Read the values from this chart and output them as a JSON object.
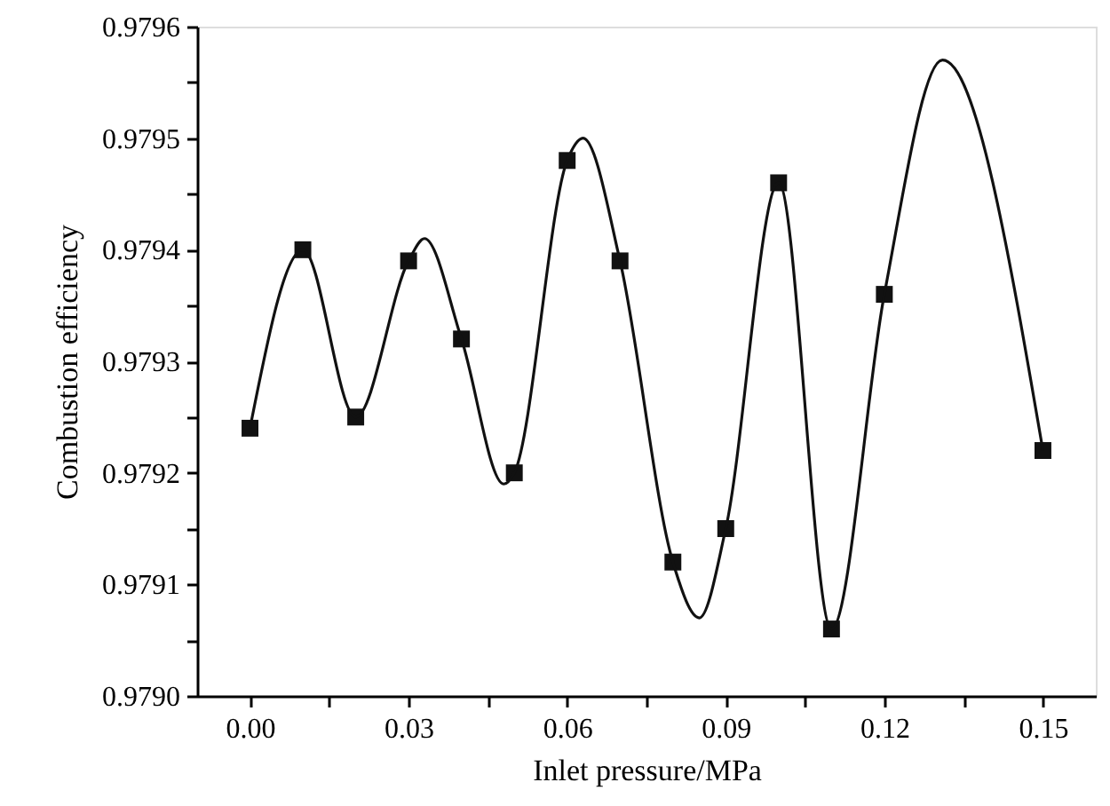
{
  "chart_data": {
    "type": "scatter",
    "xlabel": "Inlet pressure/MPa",
    "ylabel": "Combustion efficiency",
    "x": [
      0.0,
      0.01,
      0.02,
      0.03,
      0.04,
      0.05,
      0.06,
      0.07,
      0.08,
      0.09,
      0.1,
      0.11,
      0.12,
      0.15
    ],
    "series": [
      {
        "type": "scatter",
        "color": "#111111",
        "marker": "square",
        "values": [
          0.97924,
          0.9794,
          0.97925,
          0.97939,
          0.97932,
          0.9792,
          0.97948,
          0.97939,
          0.97912,
          0.97915,
          0.97946,
          0.97906,
          0.97936,
          0.97922
        ]
      },
      {
        "type": "line",
        "color": "#111111",
        "marker": "none",
        "line_style": "solid",
        "x": [
          0.0,
          0.01,
          0.02,
          0.03,
          0.033,
          0.04,
          0.048,
          0.05,
          0.06,
          0.063,
          0.07,
          0.08,
          0.085,
          0.09,
          0.1,
          0.11,
          0.12,
          0.131,
          0.15
        ],
        "values": [
          0.97924,
          0.9794,
          0.97925,
          0.97939,
          0.97941,
          0.97932,
          0.97919,
          0.9792,
          0.97948,
          0.9795,
          0.97939,
          0.97912,
          0.97907,
          0.97915,
          0.97946,
          0.97906,
          0.97936,
          0.97957,
          0.97922
        ]
      }
    ],
    "xlim": [
      -0.01,
      0.16
    ],
    "xticks": [
      {
        "value": 0.0,
        "label": "0.00"
      },
      {
        "value": 0.015,
        "label": null
      },
      {
        "value": 0.03,
        "label": "0.03"
      },
      {
        "value": 0.045,
        "label": null
      },
      {
        "value": 0.06,
        "label": "0.06"
      },
      {
        "value": 0.075,
        "label": null
      },
      {
        "value": 0.09,
        "label": "0.09"
      },
      {
        "value": 0.105,
        "label": null
      },
      {
        "value": 0.12,
        "label": "0.12"
      },
      {
        "value": 0.135,
        "label": null
      },
      {
        "value": 0.15,
        "label": "0.15"
      }
    ],
    "ylim": [
      0.979,
      0.9796
    ],
    "yticks": [
      {
        "value": 0.979,
        "label": "0.9790"
      },
      {
        "value": 0.97905,
        "label": null
      },
      {
        "value": 0.9791,
        "label": "0.9791"
      },
      {
        "value": 0.97915,
        "label": null
      },
      {
        "value": 0.9792,
        "label": "0.9792"
      },
      {
        "value": 0.97925,
        "label": null
      },
      {
        "value": 0.9793,
        "label": "0.9793"
      },
      {
        "value": 0.97935,
        "label": null
      },
      {
        "value": 0.9794,
        "label": "0.9794"
      },
      {
        "value": 0.97945,
        "label": null
      },
      {
        "value": 0.9795,
        "label": "0.9795"
      },
      {
        "value": 0.97955,
        "label": null
      },
      {
        "value": 0.9796,
        "label": "0.9796"
      }
    ],
    "grid": false
  }
}
